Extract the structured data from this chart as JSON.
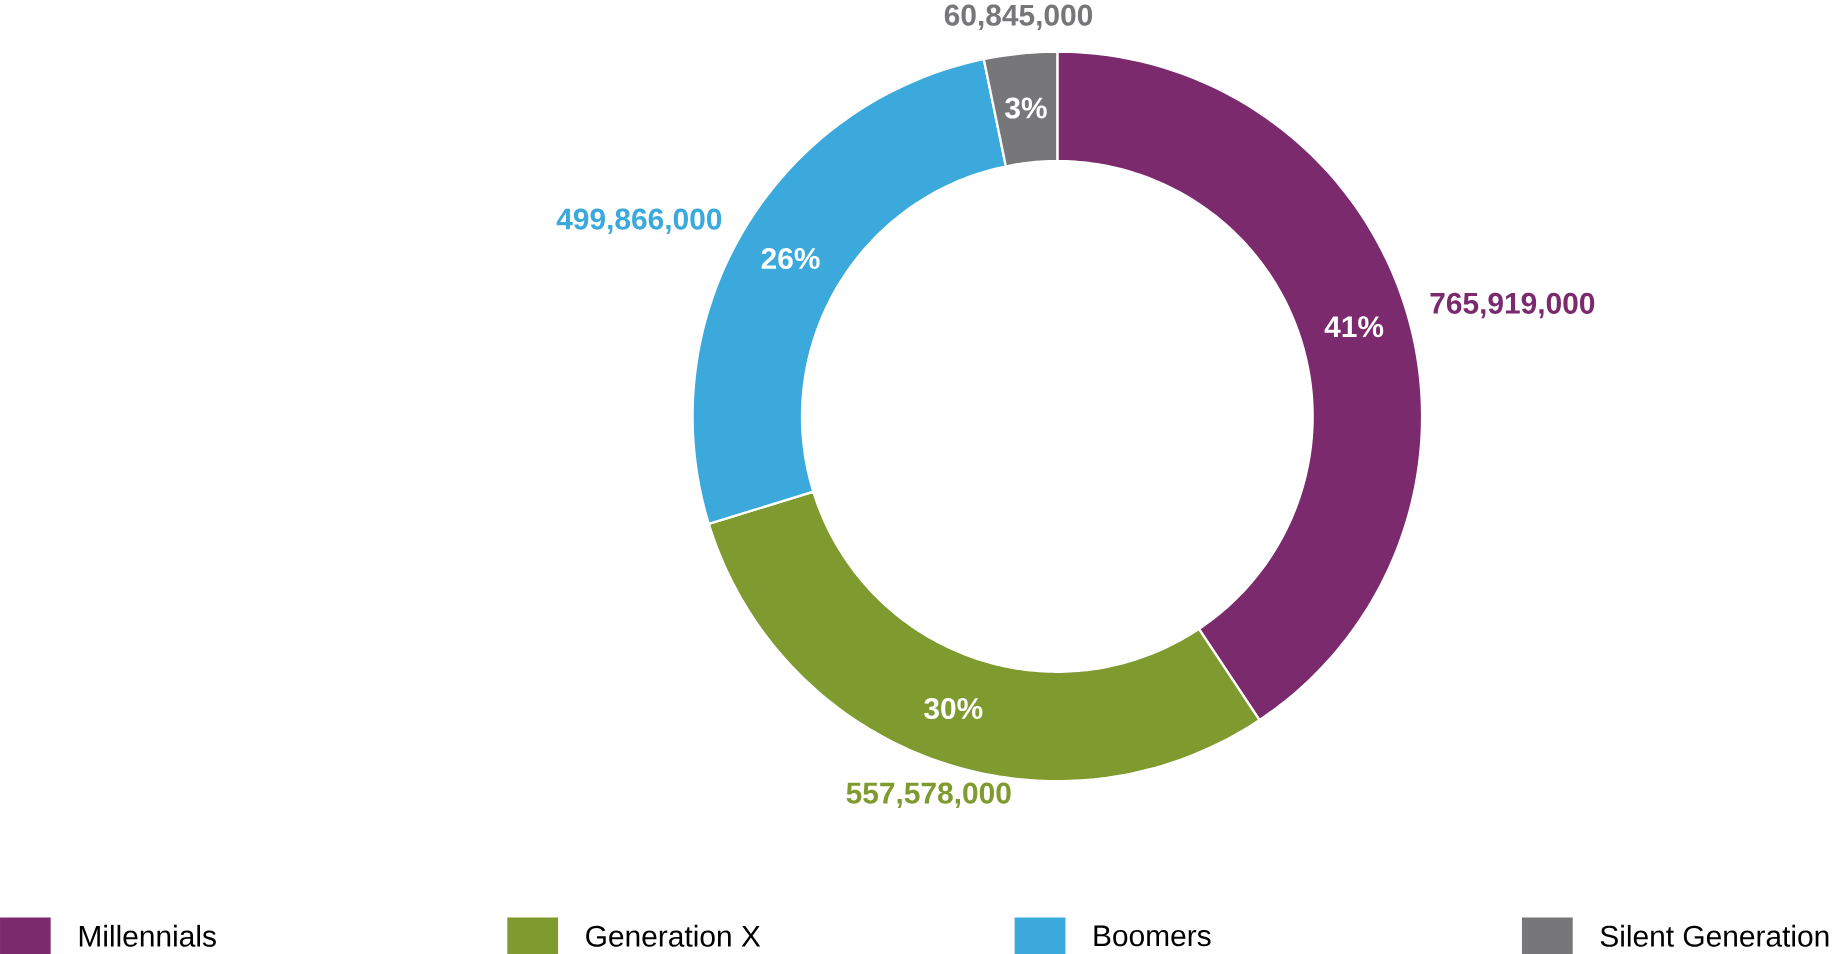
{
  "chart_data": {
    "type": "donut",
    "categories": [
      "Millennials",
      "Generation X",
      "Boomers",
      "Silent Generation"
    ],
    "values": [
      765919000,
      557578000,
      499866000,
      60845000
    ],
    "colors": [
      "#7b2a6e",
      "#7f9a2e",
      "#3ba9dc",
      "#77777a"
    ],
    "value_labels": [
      "765,919,000",
      "557,578,000",
      "499,866,000",
      "60,845,000"
    ],
    "annotations": [
      {
        "text": "41%",
        "x": "Millennials"
      },
      {
        "text": "30%",
        "x": "Generation X"
      },
      {
        "text": "26%",
        "x": "Boomers"
      },
      {
        "text": "3%",
        "x": "Silent Generation"
      }
    ],
    "legend": "bottom"
  }
}
